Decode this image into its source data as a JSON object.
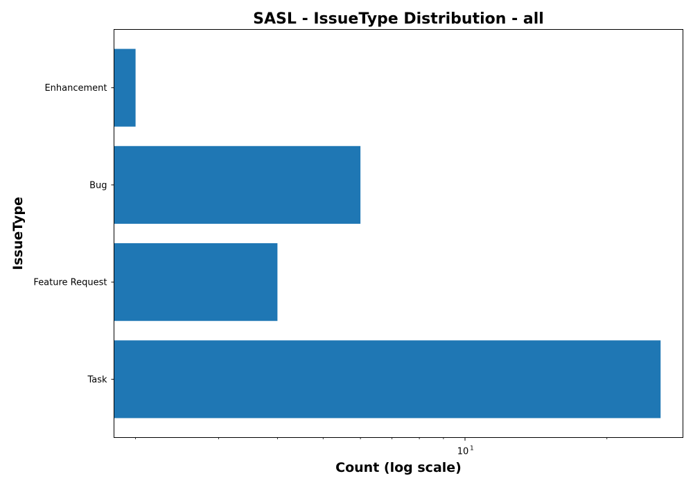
{
  "chart_data": {
    "type": "bar",
    "orientation": "horizontal",
    "title": "SASL - IssueType Distribution - all",
    "xlabel": "Count (log scale)",
    "ylabel": "IssueType",
    "x_scale": "log",
    "xlim": [
      1.8,
      29
    ],
    "categories": [
      "Enhancement",
      "Bug",
      "Feature Request",
      "Task"
    ],
    "values": [
      2,
      6,
      4,
      26
    ],
    "bar_color": "#1f77b4",
    "x_major_ticks": [
      {
        "value": 10,
        "label_base": "10",
        "label_exp": "1"
      }
    ],
    "x_minor_ticks": [
      2,
      3,
      4,
      5,
      6,
      7,
      8,
      9,
      20
    ],
    "grid": false,
    "legend": false
  }
}
